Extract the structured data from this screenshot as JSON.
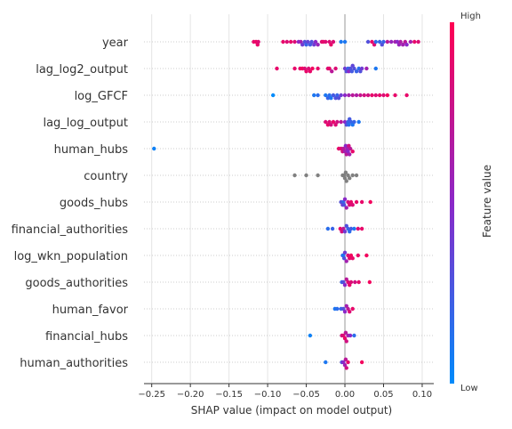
{
  "chart_data": {
    "type": "scatter",
    "subtype": "shap_beeswarm",
    "xlabel": "SHAP value (impact on model output)",
    "xlim": [
      -0.26,
      0.115
    ],
    "xticks": [
      -0.25,
      -0.2,
      -0.15,
      -0.1,
      -0.05,
      0.0,
      0.05,
      0.1
    ],
    "xtick_labels": [
      "−0.25",
      "−0.20",
      "−0.15",
      "−0.10",
      "−0.05",
      "0.00",
      "0.05",
      "0.10"
    ],
    "grid": true,
    "colorbar": {
      "label": "Feature value",
      "high_label": "High",
      "low_label": "Low",
      "low_color": "#008bfb",
      "high_color": "#ff0052",
      "mid_color": "#8b28c8",
      "missing_color": "#808080"
    },
    "features": [
      {
        "name": "year",
        "points": [
          [
            -0.115,
            0.95
          ],
          [
            -0.113,
            0.9
          ],
          [
            -0.118,
            0.9
          ],
          [
            -0.112,
            0.85
          ],
          [
            -0.08,
            0.9
          ],
          [
            -0.075,
            0.85
          ],
          [
            -0.07,
            0.9
          ],
          [
            -0.065,
            0.85
          ],
          [
            -0.06,
            0.5
          ],
          [
            -0.057,
            0.6
          ],
          [
            -0.055,
            0.4
          ],
          [
            -0.052,
            0.3
          ],
          [
            -0.05,
            0.2
          ],
          [
            -0.048,
            0.35
          ],
          [
            -0.045,
            0.25
          ],
          [
            -0.043,
            0.3
          ],
          [
            -0.04,
            0.4
          ],
          [
            -0.038,
            0.5
          ],
          [
            -0.035,
            0.55
          ],
          [
            -0.03,
            0.85
          ],
          [
            -0.028,
            0.9
          ],
          [
            -0.025,
            0.85
          ],
          [
            -0.02,
            0.85
          ],
          [
            -0.018,
            0.9
          ],
          [
            -0.015,
            0.85
          ],
          [
            -0.005,
            0.1
          ],
          [
            0.0,
            0.1
          ],
          [
            0.03,
            0.3
          ],
          [
            0.035,
            0.9
          ],
          [
            0.038,
            0.85
          ],
          [
            0.04,
            0.15
          ],
          [
            0.045,
            0.2
          ],
          [
            0.048,
            0.3
          ],
          [
            0.05,
            0.2
          ],
          [
            0.055,
            0.7
          ],
          [
            0.06,
            0.55
          ],
          [
            0.065,
            0.6
          ],
          [
            0.068,
            0.5
          ],
          [
            0.07,
            0.55
          ],
          [
            0.072,
            0.65
          ],
          [
            0.075,
            0.6
          ],
          [
            0.078,
            0.7
          ],
          [
            0.08,
            0.5
          ],
          [
            0.085,
            0.6
          ],
          [
            0.09,
            0.9
          ],
          [
            0.095,
            0.85
          ]
        ]
      },
      {
        "name": "lag_log2_output",
        "points": [
          [
            -0.088,
            0.9
          ],
          [
            -0.065,
            0.9
          ],
          [
            -0.058,
            0.9
          ],
          [
            -0.055,
            0.95
          ],
          [
            -0.052,
            0.85
          ],
          [
            -0.05,
            0.9
          ],
          [
            -0.047,
            0.85
          ],
          [
            -0.045,
            0.9
          ],
          [
            -0.042,
            0.95
          ],
          [
            -0.035,
            0.9
          ],
          [
            -0.022,
            0.85
          ],
          [
            -0.02,
            0.9
          ],
          [
            -0.017,
            0.7
          ],
          [
            -0.012,
            0.85
          ],
          [
            0.0,
            0.4
          ],
          [
            0.002,
            0.3
          ],
          [
            0.004,
            0.2
          ],
          [
            0.005,
            0.5
          ],
          [
            0.007,
            0.3
          ],
          [
            0.009,
            0.25
          ],
          [
            0.01,
            0.35
          ],
          [
            0.012,
            0.3
          ],
          [
            0.015,
            0.2
          ],
          [
            0.018,
            0.15
          ],
          [
            0.02,
            0.3
          ],
          [
            0.022,
            0.4
          ],
          [
            0.028,
            0.6
          ],
          [
            0.04,
            0.1
          ]
        ]
      },
      {
        "name": "log_GFCF",
        "points": [
          [
            -0.093,
            0.0
          ],
          [
            -0.04,
            0.1
          ],
          [
            -0.035,
            0.15
          ],
          [
            -0.025,
            0.1
          ],
          [
            -0.022,
            0.2
          ],
          [
            -0.02,
            0.15
          ],
          [
            -0.018,
            0.1
          ],
          [
            -0.015,
            0.25
          ],
          [
            -0.012,
            0.3
          ],
          [
            -0.01,
            0.2
          ],
          [
            -0.008,
            0.3
          ],
          [
            -0.005,
            0.4
          ],
          [
            0.0,
            0.5
          ],
          [
            0.005,
            0.6
          ],
          [
            0.01,
            0.7
          ],
          [
            0.015,
            0.65
          ],
          [
            0.02,
            0.75
          ],
          [
            0.025,
            0.8
          ],
          [
            0.03,
            0.8
          ],
          [
            0.035,
            0.9
          ],
          [
            0.04,
            0.85
          ],
          [
            0.045,
            0.9
          ],
          [
            0.05,
            0.85
          ],
          [
            0.055,
            0.95
          ],
          [
            0.065,
            0.9
          ],
          [
            0.08,
            0.9
          ]
        ]
      },
      {
        "name": "lag_log_output",
        "points": [
          [
            -0.025,
            0.85
          ],
          [
            -0.022,
            0.9
          ],
          [
            -0.02,
            0.85
          ],
          [
            -0.018,
            0.8
          ],
          [
            -0.015,
            0.9
          ],
          [
            -0.012,
            0.85
          ],
          [
            -0.01,
            0.8
          ],
          [
            -0.005,
            0.7
          ],
          [
            0.0,
            0.5
          ],
          [
            0.002,
            0.3
          ],
          [
            0.004,
            0.2
          ],
          [
            0.005,
            0.15
          ],
          [
            0.006,
            0.25
          ],
          [
            0.008,
            0.2
          ],
          [
            0.01,
            0.1
          ],
          [
            0.012,
            0.2
          ],
          [
            0.018,
            0.1
          ]
        ]
      },
      {
        "name": "human_hubs",
        "points": [
          [
            -0.247,
            0.05
          ],
          [
            -0.008,
            0.9
          ],
          [
            -0.005,
            0.85
          ],
          [
            -0.003,
            0.8
          ],
          [
            -0.002,
            0.7
          ],
          [
            0.0,
            0.6
          ],
          [
            0.001,
            0.5
          ],
          [
            0.002,
            0.7
          ],
          [
            0.003,
            0.6
          ],
          [
            0.004,
            0.5
          ],
          [
            0.005,
            0.8
          ],
          [
            0.006,
            0.6
          ],
          [
            0.007,
            0.7
          ],
          [
            0.01,
            0.9
          ]
        ]
      },
      {
        "name": "country",
        "points": [
          [
            -0.065,
            null
          ],
          [
            -0.05,
            null
          ],
          [
            -0.035,
            null
          ],
          [
            -0.003,
            null
          ],
          [
            -0.001,
            null
          ],
          [
            0.0,
            null
          ],
          [
            0.001,
            null
          ],
          [
            0.002,
            null
          ],
          [
            0.004,
            null
          ],
          [
            0.006,
            null
          ],
          [
            0.01,
            null
          ],
          [
            0.015,
            null
          ]
        ]
      },
      {
        "name": "goods_hubs",
        "points": [
          [
            -0.005,
            0.3
          ],
          [
            -0.003,
            0.4
          ],
          [
            -0.002,
            0.2
          ],
          [
            -0.001,
            0.3
          ],
          [
            0.0,
            0.5
          ],
          [
            0.002,
            0.6
          ],
          [
            0.004,
            0.8
          ],
          [
            0.006,
            0.85
          ],
          [
            0.008,
            0.9
          ],
          [
            0.01,
            0.85
          ],
          [
            0.015,
            0.9
          ],
          [
            0.022,
            0.9
          ],
          [
            0.033,
            0.95
          ]
        ]
      },
      {
        "name": "financial_authorities",
        "points": [
          [
            -0.022,
            0.15
          ],
          [
            -0.016,
            0.2
          ],
          [
            -0.006,
            0.9
          ],
          [
            -0.004,
            0.8
          ],
          [
            -0.002,
            0.7
          ],
          [
            0.0,
            0.4
          ],
          [
            0.002,
            0.3
          ],
          [
            0.004,
            0.2
          ],
          [
            0.006,
            0.15
          ],
          [
            0.008,
            0.25
          ],
          [
            0.012,
            0.1
          ],
          [
            0.017,
            0.85
          ],
          [
            0.022,
            0.9
          ]
        ]
      },
      {
        "name": "log_wkn_population",
        "points": [
          [
            -0.003,
            0.2
          ],
          [
            -0.002,
            0.1
          ],
          [
            -0.001,
            0.3
          ],
          [
            0.0,
            0.4
          ],
          [
            0.002,
            0.6
          ],
          [
            0.004,
            0.85
          ],
          [
            0.006,
            0.9
          ],
          [
            0.008,
            0.95
          ],
          [
            0.01,
            0.9
          ],
          [
            0.017,
            0.9
          ],
          [
            0.028,
            0.95
          ]
        ]
      },
      {
        "name": "goods_authorities",
        "points": [
          [
            -0.004,
            0.2
          ],
          [
            -0.002,
            0.3
          ],
          [
            0.0,
            0.5
          ],
          [
            0.002,
            0.7
          ],
          [
            0.004,
            0.85
          ],
          [
            0.006,
            0.9
          ],
          [
            0.008,
            0.85
          ],
          [
            0.013,
            0.8
          ],
          [
            0.018,
            0.9
          ],
          [
            0.032,
            0.95
          ]
        ]
      },
      {
        "name": "human_favor",
        "points": [
          [
            -0.013,
            0.1
          ],
          [
            -0.01,
            0.15
          ],
          [
            -0.005,
            0.2
          ],
          [
            -0.002,
            0.3
          ],
          [
            0.0,
            0.5
          ],
          [
            0.002,
            0.6
          ],
          [
            0.004,
            0.7
          ],
          [
            0.006,
            0.85
          ],
          [
            0.01,
            0.9
          ]
        ]
      },
      {
        "name": "financial_hubs",
        "points": [
          [
            -0.045,
            0.05
          ],
          [
            -0.004,
            0.8
          ],
          [
            -0.002,
            0.85
          ],
          [
            0.0,
            0.9
          ],
          [
            0.001,
            0.7
          ],
          [
            0.002,
            0.8
          ],
          [
            0.004,
            0.6
          ],
          [
            0.007,
            0.5
          ],
          [
            0.012,
            0.15
          ]
        ]
      },
      {
        "name": "human_authorities",
        "points": [
          [
            -0.025,
            0.1
          ],
          [
            -0.004,
            0.3
          ],
          [
            -0.002,
            0.5
          ],
          [
            0.0,
            0.6
          ],
          [
            0.001,
            0.7
          ],
          [
            0.002,
            0.8
          ],
          [
            0.004,
            0.9
          ],
          [
            0.022,
            0.95
          ]
        ]
      }
    ]
  }
}
